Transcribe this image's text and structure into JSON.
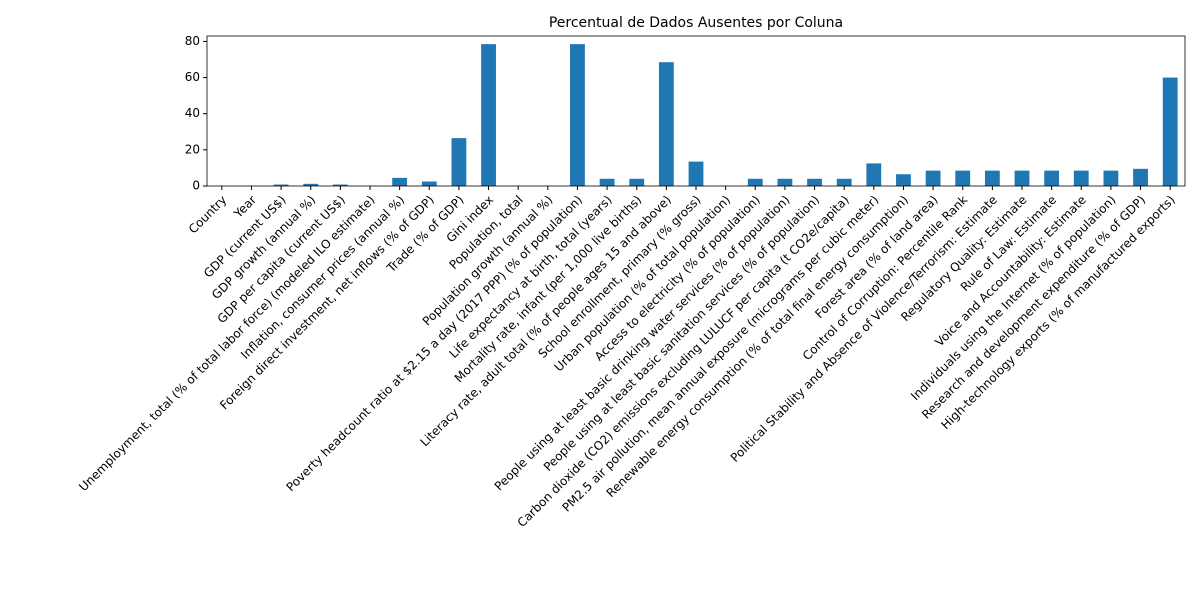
{
  "chart_data": {
    "type": "bar",
    "title": "Percentual de Dados Ausentes por Coluna",
    "categories": [
      "Country",
      "Year",
      "GDP (current US$)",
      "GDP growth (annual %)",
      "GDP per capita (current US$)",
      "Unemployment, total (% of total labor force) (modeled ILO estimate)",
      "Inflation, consumer prices (annual %)",
      "Foreign direct investment, net inflows (% of GDP)",
      "Trade (% of GDP)",
      "Gini index",
      "Population, total",
      "Population growth (annual %)",
      "Poverty headcount ratio at $2.15 a day (2017 PPP) (% of population)",
      "Life expectancy at birth, total (years)",
      "Mortality rate, infant (per 1,000 live births)",
      "Literacy rate, adult total (% of people ages 15 and above)",
      "School enrollment, primary (% gross)",
      "Urban population (% of total population)",
      "Access to electricity (% of population)",
      "People using at least basic drinking water services (% of population)",
      "People using at least basic sanitation services (% of population)",
      "Carbon dioxide (CO2) emissions excluding LULUCF per capita (t CO2e/capita)",
      "PM2.5 air pollution, mean annual exposure (micrograms per cubic meter)",
      "Renewable energy consumption (% of total final energy consumption)",
      "Forest area (% of land area)",
      "Control of Corruption: Percentile Rank",
      "Political Stability and Absence of Violence/Terrorism: Estimate",
      "Regulatory Quality: Estimate",
      "Rule of Law: Estimate",
      "Voice and Accountability: Estimate",
      "Individuals using the Internet (% of population)",
      "Research and development expenditure (% of GDP)",
      "High-technology exports (% of manufactured exports)"
    ],
    "values": [
      0,
      0,
      0.8,
      1.2,
      0.8,
      0,
      4.5,
      2.5,
      26.5,
      78.5,
      0,
      0,
      78.5,
      4,
      4,
      68.5,
      13.5,
      0,
      4,
      4,
      4,
      4,
      12.5,
      6.5,
      8.5,
      8.5,
      8.5,
      8.5,
      8.5,
      8.5,
      8.5,
      9.5,
      60
    ],
    "color": "#1f77b4",
    "ylim": [
      0,
      83
    ],
    "yticks": [
      0,
      20,
      40,
      60,
      80
    ],
    "grid": false
  }
}
